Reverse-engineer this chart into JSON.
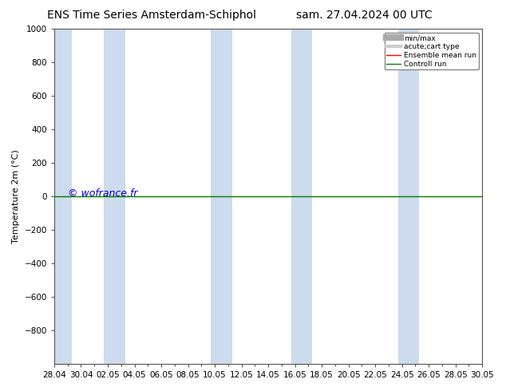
{
  "title_left": "ENS Time Series Amsterdam-Schiphol",
  "title_right": "sam. 27.04.2024 00 UTC",
  "ylabel": "Temperature 2m (°C)",
  "watermark": "© wofrance.fr",
  "ylim": [
    -1000,
    1000
  ],
  "yticks": [
    -800,
    -600,
    -400,
    -200,
    0,
    200,
    400,
    600,
    800,
    1000
  ],
  "xtick_labels": [
    "28.04",
    "30.04",
    "02.05",
    "04.05",
    "06.05",
    "08.05",
    "10.05",
    "12.05",
    "14.05",
    "16.05",
    "18.05",
    "20.05",
    "22.05",
    "24.05",
    "26.05",
    "28.05",
    "30.05"
  ],
  "xtick_values": [
    0,
    2,
    4,
    6,
    8,
    10,
    12,
    14,
    16,
    18,
    20,
    22,
    24,
    26,
    28,
    30,
    32
  ],
  "xlim": [
    0,
    32
  ],
  "shade_bands": [
    [
      -0.3,
      1.3
    ],
    [
      3.7,
      5.3
    ],
    [
      11.7,
      13.3
    ],
    [
      17.7,
      19.3
    ],
    [
      25.7,
      27.3
    ]
  ],
  "shade_color": "#ccdcee",
  "green_line_y": 0,
  "red_line_y": 0,
  "green_color": "#008800",
  "red_color": "#ff0000",
  "watermark_color": "#0000cc",
  "background_color": "#ffffff",
  "legend_items": [
    {
      "label": "min/max",
      "color": "#aaaaaa",
      "linewidth": 6,
      "linestyle": "-"
    },
    {
      "label": "acute;cart type",
      "color": "#cccccc",
      "linewidth": 3,
      "linestyle": "-"
    },
    {
      "label": "Ensemble mean run",
      "color": "#ff0000",
      "linewidth": 1.0,
      "linestyle": "-"
    },
    {
      "label": "Controll run",
      "color": "#008800",
      "linewidth": 1.0,
      "linestyle": "-"
    }
  ],
  "title_fontsize": 10,
  "axis_fontsize": 8,
  "tick_fontsize": 7.5,
  "watermark_fontsize": 9
}
